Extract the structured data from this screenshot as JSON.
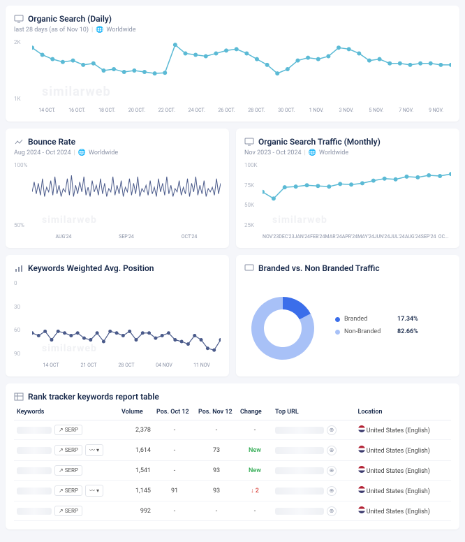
{
  "watermark": "similarweb",
  "organic_daily": {
    "title": "Organic Search (Daily)",
    "subtitle_period": "last 28 days (as of Nov 10)",
    "subtitle_scope": "Worldwide",
    "type": "line",
    "line_color": "#5bbad5",
    "line_width": 1.5,
    "marker": "circle",
    "marker_size": 3,
    "y_ticks": [
      "2K",
      "1K"
    ],
    "x_ticks": [
      "14 OCT.",
      "16 OCT.",
      "18 OCT.",
      "20 OCT.",
      "22 OCT.",
      "24 OCT.",
      "26 OCT.",
      "28 OCT.",
      "30 OCT.",
      "1 NOV.",
      "3 NOV.",
      "5 NOV.",
      "7 NOV.",
      "9 NOV."
    ],
    "values": [
      1900,
      1650,
      1500,
      1400,
      1450,
      1300,
      1350,
      1100,
      1150,
      1050,
      1100,
      1050,
      1000,
      1020,
      2000,
      1700,
      1650,
      1600,
      1700,
      1800,
      1850,
      1700,
      1500,
      1300,
      1000,
      1150,
      1450,
      1550,
      1500,
      1600,
      1900,
      1850,
      1700,
      1450,
      1500,
      1350,
      1350,
      1300,
      1350,
      1350,
      1300,
      1300
    ],
    "ylim": [
      0,
      2200
    ],
    "height": 90
  },
  "bounce": {
    "title": "Bounce Rate",
    "subtitle_period": "Aug 2024 - Oct 2024",
    "subtitle_scope": "Worldwide",
    "type": "line",
    "line_color": "#4a5a8a",
    "line_width": 1,
    "y_ticks": [
      "100%",
      "50%"
    ],
    "x_ticks": [
      "AUG'24",
      "SEP'24",
      "OCT'24"
    ],
    "values": [
      55,
      70,
      52,
      68,
      50,
      75,
      48,
      62,
      55,
      72,
      50,
      78,
      52,
      65,
      48,
      60,
      55,
      75,
      50,
      80,
      48,
      65,
      52,
      70,
      55,
      78,
      50,
      62,
      48,
      72,
      55,
      65,
      50,
      75,
      52,
      68,
      48,
      60,
      55,
      78,
      50,
      65,
      52,
      72,
      48,
      62,
      55,
      75,
      50,
      68,
      52,
      78,
      48,
      60,
      55,
      65,
      50,
      72,
      52,
      62,
      48,
      75,
      55,
      68,
      50,
      78,
      52,
      65,
      48,
      60,
      55,
      72,
      50,
      62,
      52,
      75,
      48,
      68,
      55,
      78,
      50,
      65,
      52,
      72,
      48,
      60,
      55,
      62,
      50,
      75,
      52,
      68
    ],
    "ylim": [
      0,
      100
    ],
    "height": 95
  },
  "organic_monthly": {
    "title": "Organic Search Traffic (Monthly)",
    "subtitle_period": "Nov 2023 - Oct 2024",
    "subtitle_scope": "Worldwide",
    "type": "line",
    "line_color": "#5bbad5",
    "line_width": 1.5,
    "marker": "circle",
    "marker_size": 3,
    "y_ticks": [
      "100K",
      "75K",
      "50K",
      "25K"
    ],
    "x_ticks": [
      "NOV'23",
      "DEC'23",
      "JAN'24",
      "FEB'24",
      "MAR'24",
      "APR'24",
      "MAY'24",
      "JUN'24",
      "JUL'24",
      "AUG'24",
      "SEP'24",
      "OC..."
    ],
    "values": [
      55000,
      45000,
      62000,
      63000,
      65000,
      64000,
      63000,
      67000,
      66000,
      68000,
      72000,
      75000,
      74000,
      78000,
      77000,
      80000,
      79000,
      82000
    ],
    "ylim": [
      0,
      100000
    ],
    "height": 95
  },
  "keywords_pos": {
    "title": "Keywords Weighted Avg. Position",
    "type": "line",
    "line_color": "#4a5a8a",
    "line_width": 1.2,
    "marker": "circle",
    "marker_size": 2.5,
    "y_ticks": [
      "0",
      "30",
      "60",
      "90"
    ],
    "x_ticks": [
      "14 OCT",
      "21 OCT",
      "28 OCT",
      "04 NOV",
      "11 NOV"
    ],
    "values": [
      62,
      65,
      60,
      70,
      60,
      62,
      65,
      62,
      68,
      70,
      62,
      72,
      60,
      62,
      65,
      60,
      70,
      62,
      62,
      68,
      65,
      62,
      70,
      72,
      75,
      65,
      70,
      80,
      82,
      70
    ],
    "ylim": [
      0,
      90
    ],
    "height": 110,
    "invert_y": true
  },
  "branded": {
    "title": "Branded vs. Non Branded Traffic",
    "type": "donut",
    "segments": [
      {
        "label": "Branded",
        "value": 17.34,
        "display": "17.34%",
        "color": "#3b6eea"
      },
      {
        "label": "Non-Branded",
        "value": 82.66,
        "display": "82.66%",
        "color": "#a8c1f7"
      }
    ],
    "inner_radius": 0.6,
    "size": 110
  },
  "rank_table": {
    "title": "Rank tracker keywords report table",
    "columns": [
      "Keywords",
      "Volume",
      "Pos. Oct 12",
      "Pos. Nov 12",
      "Change",
      "Top URL",
      "Location"
    ],
    "serp_btn": "SERP",
    "location_text": "United States (English)",
    "rows": [
      {
        "volume": "2,378",
        "pos_oct": "-",
        "pos_nov": "-",
        "change": "-",
        "change_type": "none",
        "has_serp": true,
        "has_trend": false
      },
      {
        "volume": "1,614",
        "pos_oct": "-",
        "pos_nov": "73",
        "change": "New",
        "change_type": "new",
        "has_serp": true,
        "has_trend": true
      },
      {
        "volume": "1,541",
        "pos_oct": "-",
        "pos_nov": "93",
        "change": "New",
        "change_type": "new",
        "has_serp": true,
        "has_trend": false
      },
      {
        "volume": "1,145",
        "pos_oct": "91",
        "pos_nov": "93",
        "change": "↓ 2",
        "change_type": "down",
        "has_serp": true,
        "has_trend": true
      },
      {
        "volume": "992",
        "pos_oct": "-",
        "pos_nov": "-",
        "change": "-",
        "change_type": "none",
        "has_serp": true,
        "has_trend": false
      }
    ]
  }
}
